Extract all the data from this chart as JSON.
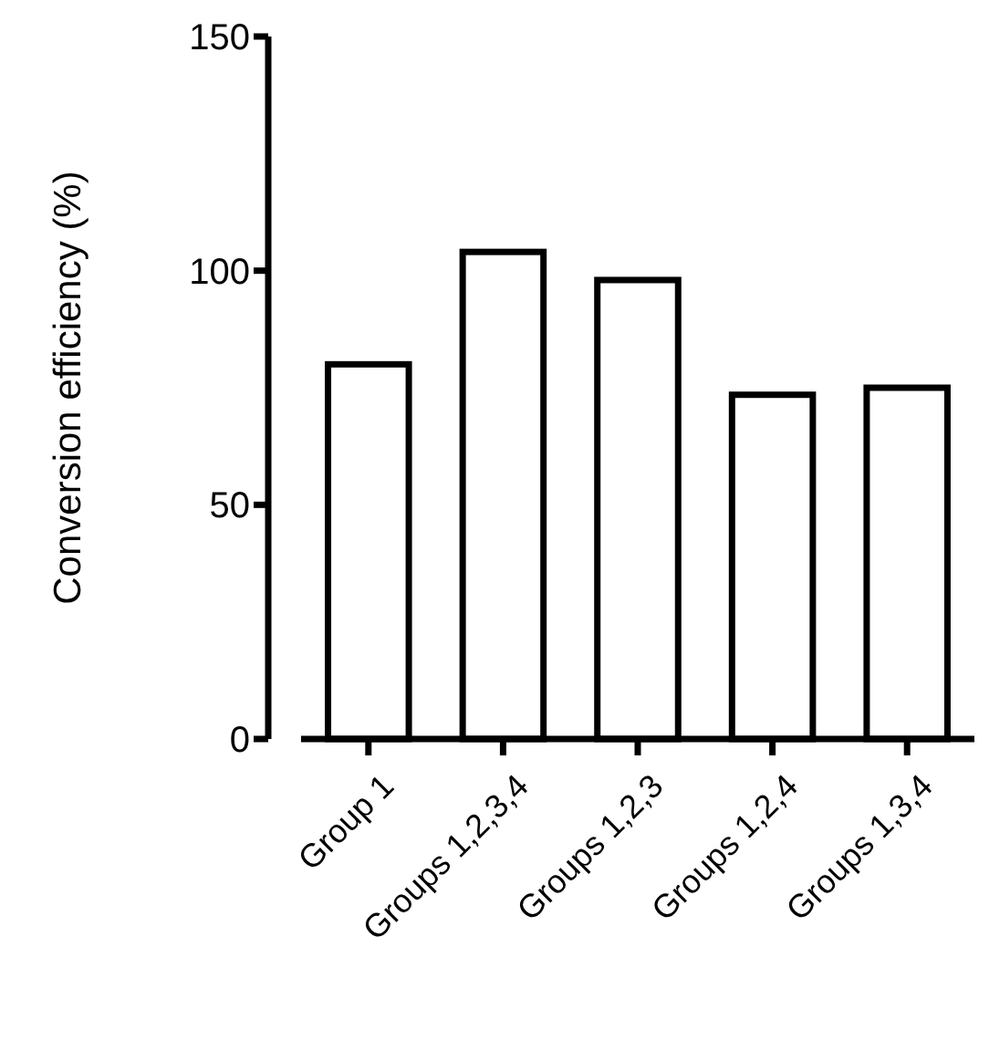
{
  "chart_data": {
    "type": "bar",
    "ylabel": "Conversion efficiency (%)",
    "categories": [
      "Group 1",
      "Groups 1,2,3,4",
      "Groups 1,2,3",
      "Groups 1,2,4",
      "Groups 1,3,4"
    ],
    "values": [
      80,
      104,
      98,
      73.5,
      75
    ],
    "color": "#ffffff",
    "ylim": [
      0,
      150
    ],
    "yticks": [
      0,
      50,
      100,
      150
    ]
  }
}
